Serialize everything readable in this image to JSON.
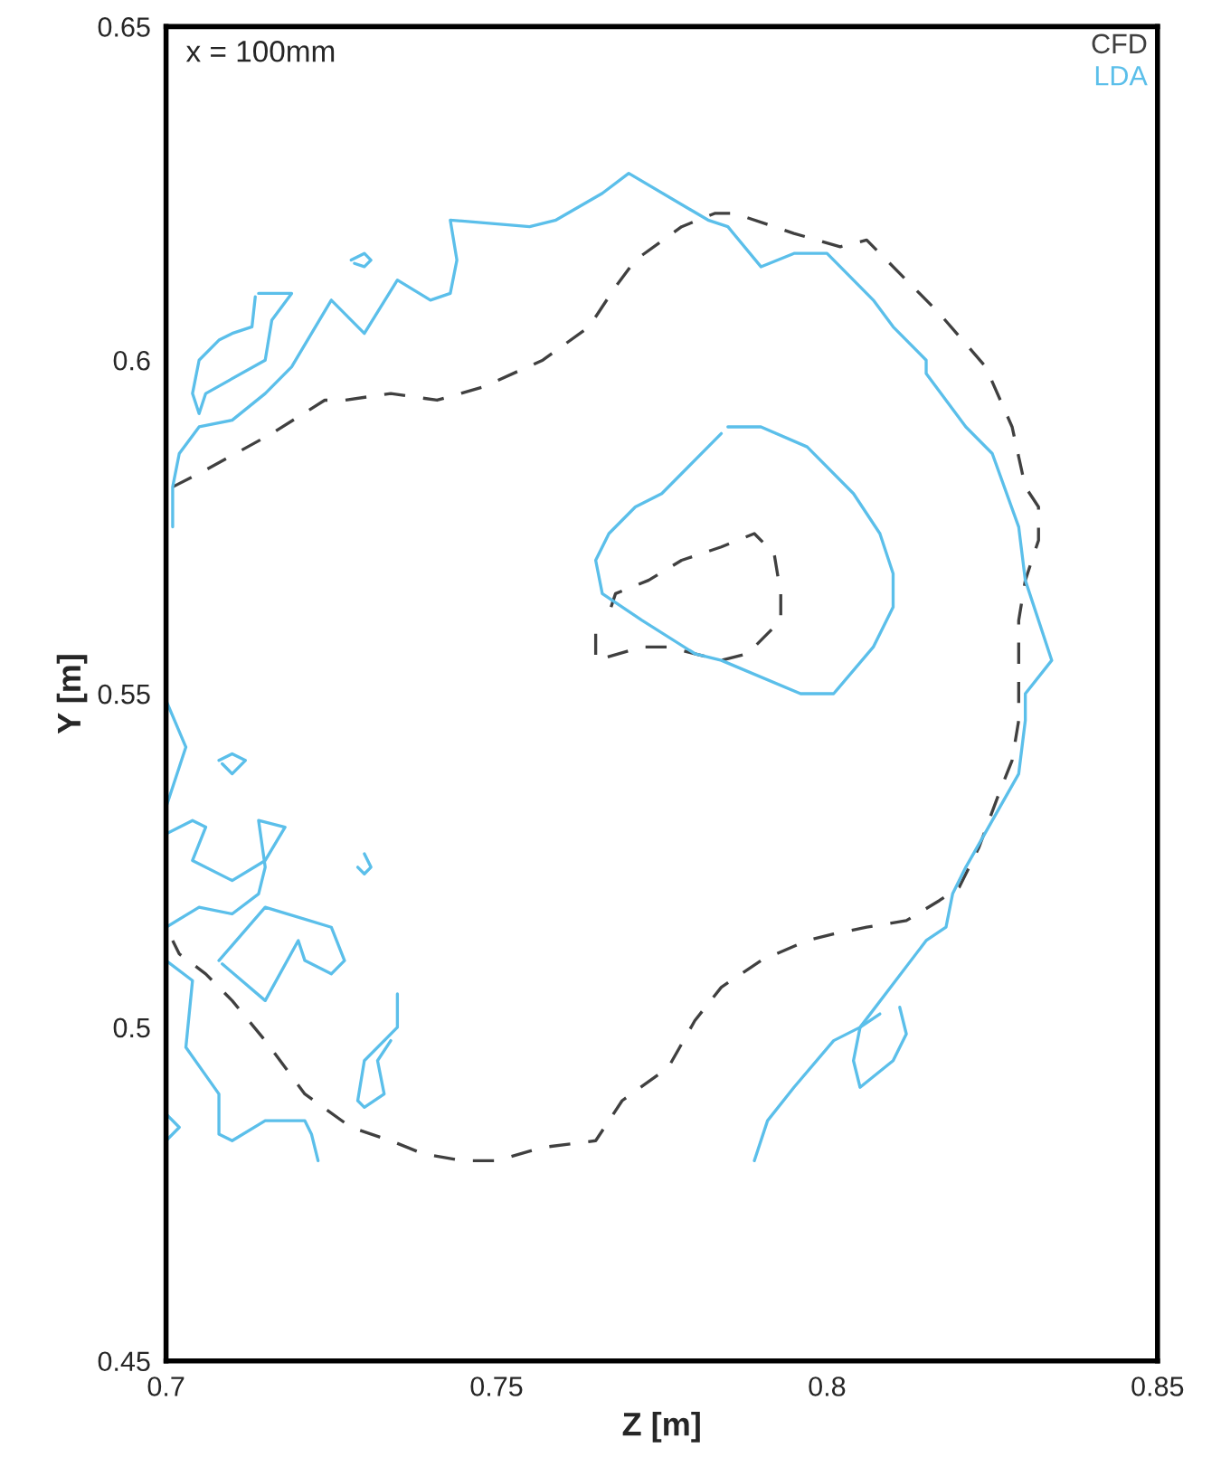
{
  "chart_data": {
    "type": "line",
    "xlabel": "Z [m]",
    "ylabel": "Y [m]",
    "annotations": [
      "x = 100mm"
    ],
    "xlim": [
      0.7,
      0.85
    ],
    "xticks": [
      0.7,
      0.75,
      0.8,
      0.85
    ],
    "ylim": [
      0.45,
      0.65
    ],
    "yticks": [
      0.45,
      0.5,
      0.55,
      0.6,
      0.65
    ],
    "grid": false,
    "legend": "top right",
    "series": [
      {
        "name": "CFD",
        "color": "#404040",
        "line_style": "dashed",
        "x": [
          0.701,
          0.705,
          0.716,
          0.724,
          0.727,
          0.734,
          0.741,
          0.748,
          0.757,
          0.764,
          0.768,
          0.771,
          0.778,
          0.783,
          0.786,
          0.795,
          0.802,
          0.806,
          0.812,
          0.817,
          0.824,
          0.828,
          0.83,
          0.832,
          0.832,
          0.83,
          0.829,
          0.829,
          0.829,
          0.828,
          0.826,
          0.823,
          0.82,
          0.817,
          0.812,
          0.806,
          0.801,
          0.797,
          0.79,
          0.784,
          0.78,
          0.776,
          0.769,
          0.765,
          0.757,
          0.75,
          0.745,
          0.739,
          0.734,
          0.728,
          0.721,
          0.715,
          0.71,
          0.706,
          0.702,
          0.701
        ],
        "values": [
          0.581,
          0.583,
          0.589,
          0.594,
          0.594,
          0.595,
          0.594,
          0.596,
          0.6,
          0.605,
          0.611,
          0.615,
          0.62,
          0.622,
          0.622,
          0.619,
          0.617,
          0.618,
          0.612,
          0.607,
          0.599,
          0.59,
          0.581,
          0.578,
          0.573,
          0.567,
          0.561,
          0.551,
          0.546,
          0.54,
          0.535,
          0.527,
          0.521,
          0.519,
          0.516,
          0.515,
          0.514,
          0.513,
          0.51,
          0.506,
          0.501,
          0.494,
          0.489,
          0.483,
          0.482,
          0.48,
          0.48,
          0.481,
          0.483,
          0.485,
          0.49,
          0.498,
          0.504,
          0.508,
          0.511,
          0.513
        ]
      },
      {
        "color": "#404040",
        "line_style": "dashed",
        "x": [
          0.765,
          0.765,
          0.772,
          0.776,
          0.78,
          0.784,
          0.788,
          0.791,
          0.793,
          0.793,
          0.792,
          0.789,
          0.784,
          0.778,
          0.773,
          0.768,
          0.767
        ],
        "values": [
          0.559,
          0.555,
          0.557,
          0.557,
          0.556,
          0.555,
          0.556,
          0.559,
          0.561,
          0.565,
          0.571,
          0.574,
          0.572,
          0.57,
          0.567,
          0.565,
          0.562
        ]
      },
      {
        "name": "LDA",
        "color": "#5bbfea",
        "line_style": "solid",
        "x": [
          0.789,
          0.791,
          0.795,
          0.801,
          0.805,
          0.815,
          0.818,
          0.819,
          0.821,
          0.829,
          0.83,
          0.83,
          0.834,
          0.83,
          0.829,
          0.825,
          0.821,
          0.815,
          0.815,
          0.81,
          0.807,
          0.8,
          0.795,
          0.79,
          0.785,
          0.782,
          0.77,
          0.766,
          0.759,
          0.755,
          0.743,
          0.744,
          0.743,
          0.74,
          0.735,
          0.73,
          0.725,
          0.719,
          0.715,
          0.71,
          0.705,
          0.702,
          0.701,
          0.701
        ],
        "values": [
          0.48,
          0.486,
          0.491,
          0.498,
          0.5,
          0.513,
          0.515,
          0.52,
          0.524,
          0.538,
          0.546,
          0.55,
          0.555,
          0.567,
          0.575,
          0.586,
          0.59,
          0.598,
          0.6,
          0.605,
          0.609,
          0.616,
          0.616,
          0.614,
          0.62,
          0.621,
          0.628,
          0.625,
          0.621,
          0.62,
          0.621,
          0.615,
          0.61,
          0.609,
          0.612,
          0.604,
          0.609,
          0.599,
          0.595,
          0.591,
          0.59,
          0.586,
          0.581,
          0.575
        ]
      },
      {
        "color": "#5bbfea",
        "line_style": "solid",
        "x": [
          0.785,
          0.79,
          0.797,
          0.804,
          0.808,
          0.81,
          0.81,
          0.807,
          0.801,
          0.796,
          0.784,
          0.78,
          0.772,
          0.766,
          0.765,
          0.767,
          0.771,
          0.775,
          0.779,
          0.784
        ],
        "values": [
          0.59,
          0.59,
          0.587,
          0.58,
          0.574,
          0.568,
          0.563,
          0.557,
          0.55,
          0.55,
          0.555,
          0.556,
          0.561,
          0.565,
          0.57,
          0.574,
          0.578,
          0.58,
          0.584,
          0.589
        ]
      },
      {
        "color": "#5bbfea",
        "line_style": "solid",
        "x": [
          0.714,
          0.719,
          0.716,
          0.715,
          0.706,
          0.705,
          0.704,
          0.705,
          0.708,
          0.71,
          0.713,
          0.7135
        ],
        "values": [
          0.61,
          0.61,
          0.606,
          0.6,
          0.595,
          0.592,
          0.595,
          0.6,
          0.603,
          0.604,
          0.605,
          0.6095
        ]
      },
      {
        "color": "#5bbfea",
        "line_style": "solid",
        "x": [
          0.728,
          0.73,
          0.731,
          0.73,
          0.7285
        ],
        "values": [
          0.615,
          0.616,
          0.615,
          0.614,
          0.6145
        ]
      },
      {
        "color": "#5bbfea",
        "line_style": "solid",
        "x": [
          0.7,
          0.703,
          0.7
        ],
        "values": [
          0.549,
          0.542,
          0.533
        ]
      },
      {
        "color": "#5bbfea",
        "line_style": "solid",
        "x": [
          0.708,
          0.71,
          0.712,
          0.71,
          0.7085
        ],
        "values": [
          0.54,
          0.541,
          0.54,
          0.538,
          0.5395
        ]
      },
      {
        "color": "#5bbfea",
        "line_style": "solid",
        "x": [
          0.7,
          0.704,
          0.706,
          0.704,
          0.71,
          0.715,
          0.718,
          0.714,
          0.715,
          0.714,
          0.71,
          0.705,
          0.7
        ],
        "values": [
          0.529,
          0.531,
          0.53,
          0.525,
          0.522,
          0.525,
          0.53,
          0.531,
          0.524,
          0.52,
          0.517,
          0.518,
          0.515
        ]
      },
      {
        "color": "#5bbfea",
        "line_style": "solid",
        "x": [
          0.708,
          0.715,
          0.725,
          0.727,
          0.725,
          0.721,
          0.72,
          0.715,
          0.7085
        ],
        "values": [
          0.51,
          0.518,
          0.515,
          0.51,
          0.508,
          0.51,
          0.513,
          0.504,
          0.5095
        ]
      },
      {
        "color": "#5bbfea",
        "line_style": "solid",
        "x": [
          0.7,
          0.704,
          0.703,
          0.708,
          0.708,
          0.71,
          0.715,
          0.721,
          0.722,
          0.723
        ],
        "values": [
          0.51,
          0.507,
          0.497,
          0.49,
          0.484,
          0.483,
          0.486,
          0.486,
          0.484,
          0.48
        ]
      },
      {
        "color": "#5bbfea",
        "line_style": "solid",
        "x": [
          0.735,
          0.735,
          0.73,
          0.729,
          0.73,
          0.733,
          0.732,
          0.734
        ],
        "values": [
          0.505,
          0.5,
          0.495,
          0.489,
          0.488,
          0.49,
          0.495,
          0.498
        ]
      },
      {
        "color": "#5bbfea",
        "line_style": "solid",
        "x": [
          0.7,
          0.702,
          0.7
        ],
        "values": [
          0.487,
          0.485,
          0.483
        ]
      },
      {
        "color": "#5bbfea",
        "line_style": "solid",
        "x": [
          0.811,
          0.812,
          0.81,
          0.805,
          0.804,
          0.805,
          0.808
        ],
        "values": [
          0.503,
          0.499,
          0.495,
          0.491,
          0.495,
          0.5,
          0.502
        ]
      },
      {
        "color": "#5bbfea",
        "line_style": "solid",
        "x": [
          0.73,
          0.731,
          0.73,
          0.729
        ],
        "values": [
          0.526,
          0.524,
          0.523,
          0.524
        ]
      }
    ]
  }
}
